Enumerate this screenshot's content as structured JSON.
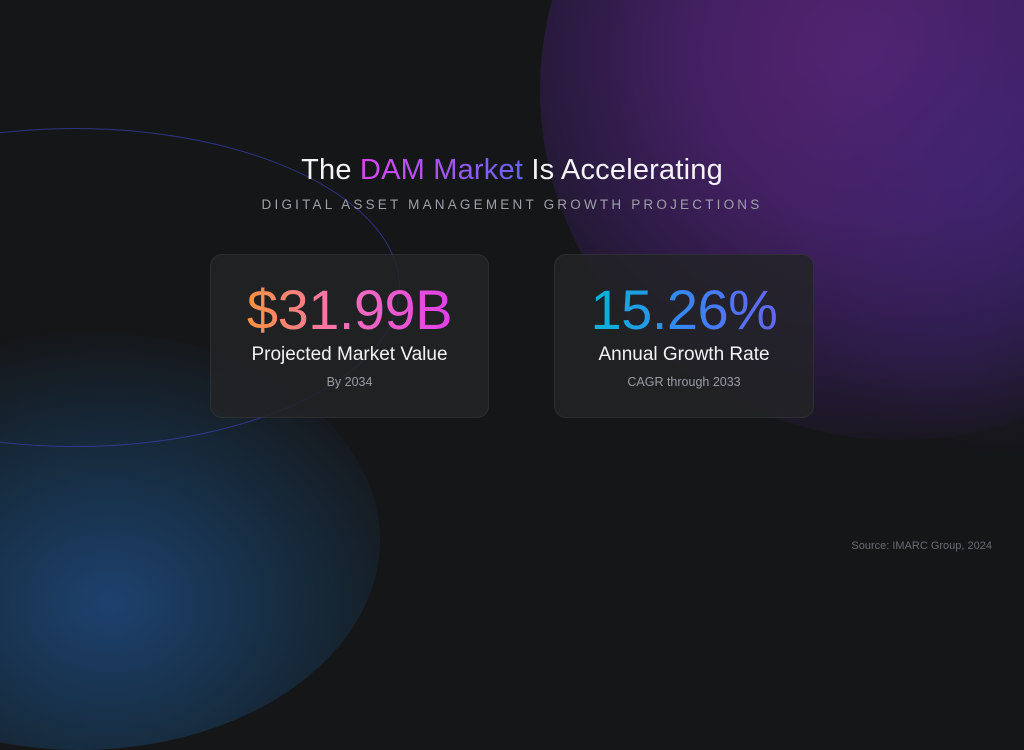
{
  "slide": {
    "title": {
      "prefix": "The ",
      "highlight": "DAM Market",
      "suffix": " Is Accelerating"
    },
    "subtitle": "DIGITAL ASSET MANAGEMENT GROWTH PROJECTIONS",
    "stats": [
      {
        "value": "$31.99B",
        "label": "Projected Market Value",
        "sub": "By 2034"
      },
      {
        "value": "15.26%",
        "label": "Annual Growth Rate",
        "sub": "CAGR through 2033"
      }
    ],
    "source": "Source: IMARC Group, 2024"
  },
  "colors": {
    "background": "#151618",
    "title_gradient": [
      "#d946ef",
      "#a855f7",
      "#6366f1"
    ],
    "stat1_gradient": [
      "#fb923c",
      "#f472b6",
      "#e040e8"
    ],
    "stat2_gradient": [
      "#06b6d4",
      "#3b82f6",
      "#6366f1"
    ]
  }
}
